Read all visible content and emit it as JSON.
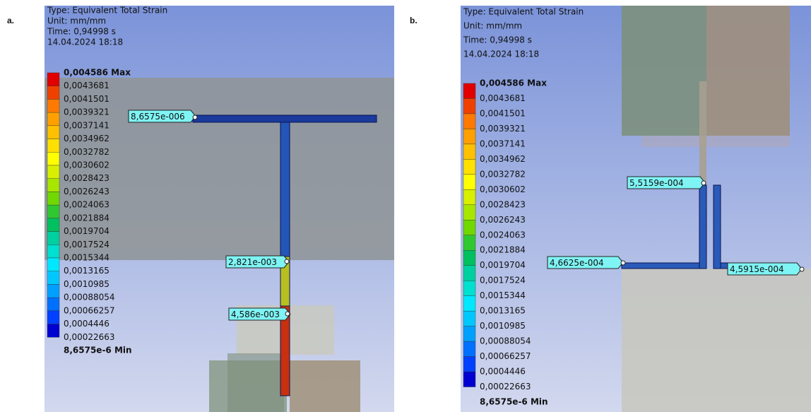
{
  "panels": [
    {
      "label": "a.",
      "header": [
        "Type: Equivalent Total Strain",
        "Unit: mm/mm",
        "Time: 0,94998 s",
        "14.04.2024 18:18"
      ],
      "legend": [
        "0,004586 Max",
        "0,0043681",
        "0,0041501",
        "0,0039321",
        "0,0037141",
        "0,0034962",
        "0,0032782",
        "0,0030602",
        "0,0028423",
        "0,0026243",
        "0,0024063",
        "0,0021884",
        "0,0019704",
        "0,0017524",
        "0,0015344",
        "0,0013165",
        "0,0010985",
        "0,00088054",
        "0,00066257",
        "0,0004446",
        "0,00022663",
        "8,6575e-6 Min"
      ],
      "probes": [
        "8,6575e-006",
        "2,821e-003",
        "4,586e-003"
      ]
    },
    {
      "label": "b.",
      "header": [
        "Type: Equivalent Total Strain",
        "Unit: mm/mm",
        "Time: 0,94998 s",
        "14.04.2024 18:18"
      ],
      "legend": [
        "0,004586 Max",
        "0,0043681",
        "0,0041501",
        "0,0039321",
        "0,0037141",
        "0,0034962",
        "0,0032782",
        "0,0030602",
        "0,0028423",
        "0,0026243",
        "0,0024063",
        "0,0021884",
        "0,0019704",
        "0,0017524",
        "0,0015344",
        "0,0013165",
        "0,0010985",
        "0,00088054",
        "0,00066257",
        "0,0004446",
        "0,00022663",
        "8,6575e-6 Min"
      ],
      "probes": [
        "5,5159e-004",
        "4,6625e-004",
        "4,5915e-004"
      ]
    }
  ]
}
